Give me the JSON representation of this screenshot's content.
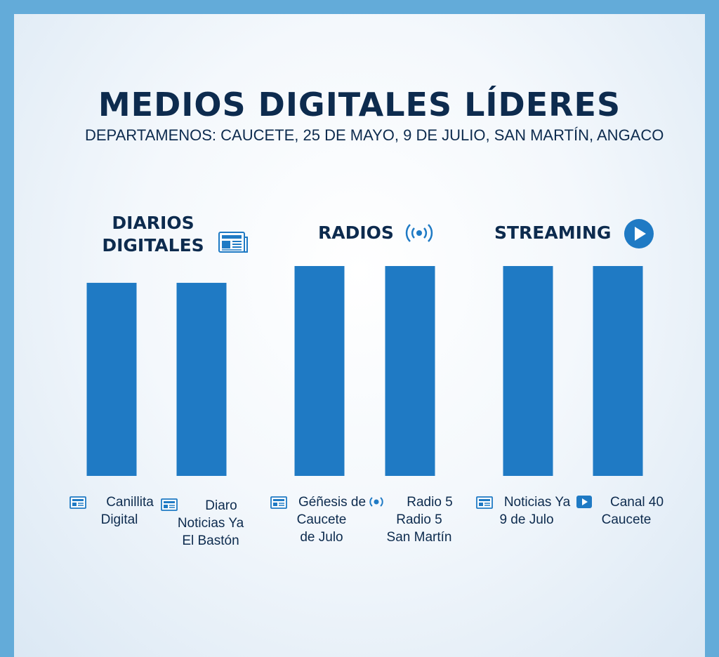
{
  "header": {
    "title": "MEDIOS DIGITALES LÍDERES",
    "subtitle": "DEPARTAMENOS: CAUCETE, 25 DE MAYO, 9 DE JULIO, SAN MARTÍN, ANGACO"
  },
  "groups": [
    {
      "name_line1": "DIARIOS",
      "name_line2": "DIGITALES",
      "icon": "newspaper-icon"
    },
    {
      "name": "RADIOS",
      "icon": "radio-signal-icon"
    },
    {
      "name": "STREAMING",
      "icon": "play-icon"
    }
  ],
  "colors": {
    "bar": "#1f7ac4",
    "text": "#0d2b4e",
    "frame": "#63abd9"
  },
  "chart_data": {
    "type": "bar",
    "title": "MEDIOS DIGITALES LÍDERES",
    "subtitle": "DEPARTAMENOS: CAUCETE, 25 DE MAYO, 9 DE JULIO, SAN MARTÍN, ANGACO",
    "xlabel": "",
    "ylabel": "",
    "grid": false,
    "groups": [
      "DIARIOS DIGITALES",
      "RADIOS",
      "STREAMING"
    ],
    "categories": [
      {
        "group": 0,
        "lines": [
          "Canillita",
          "Digital"
        ],
        "icon": "newspaper-icon",
        "value": 0.92
      },
      {
        "group": 0,
        "lines": [
          "Diaro",
          "Noticias Ya",
          "El Bastón"
        ],
        "icon": "newspaper-icon",
        "value": 0.92
      },
      {
        "group": 1,
        "lines": [
          "Géñesis de",
          "Caucete",
          "de Julo"
        ],
        "icon": "newspaper-icon",
        "value": 1.0
      },
      {
        "group": 1,
        "lines": [
          "Radio 5",
          "Radio 5",
          "San Martín"
        ],
        "icon": "radio-signal-icon",
        "value": 1.0
      },
      {
        "group": 2,
        "lines": [
          "Noticias Ya",
          "9 de Julo"
        ],
        "icon": "newspaper-icon",
        "value": 1.0
      },
      {
        "group": 2,
        "lines": [
          "Canal 40",
          "Caucete"
        ],
        "icon": "play-icon",
        "value": 1.0
      }
    ]
  }
}
